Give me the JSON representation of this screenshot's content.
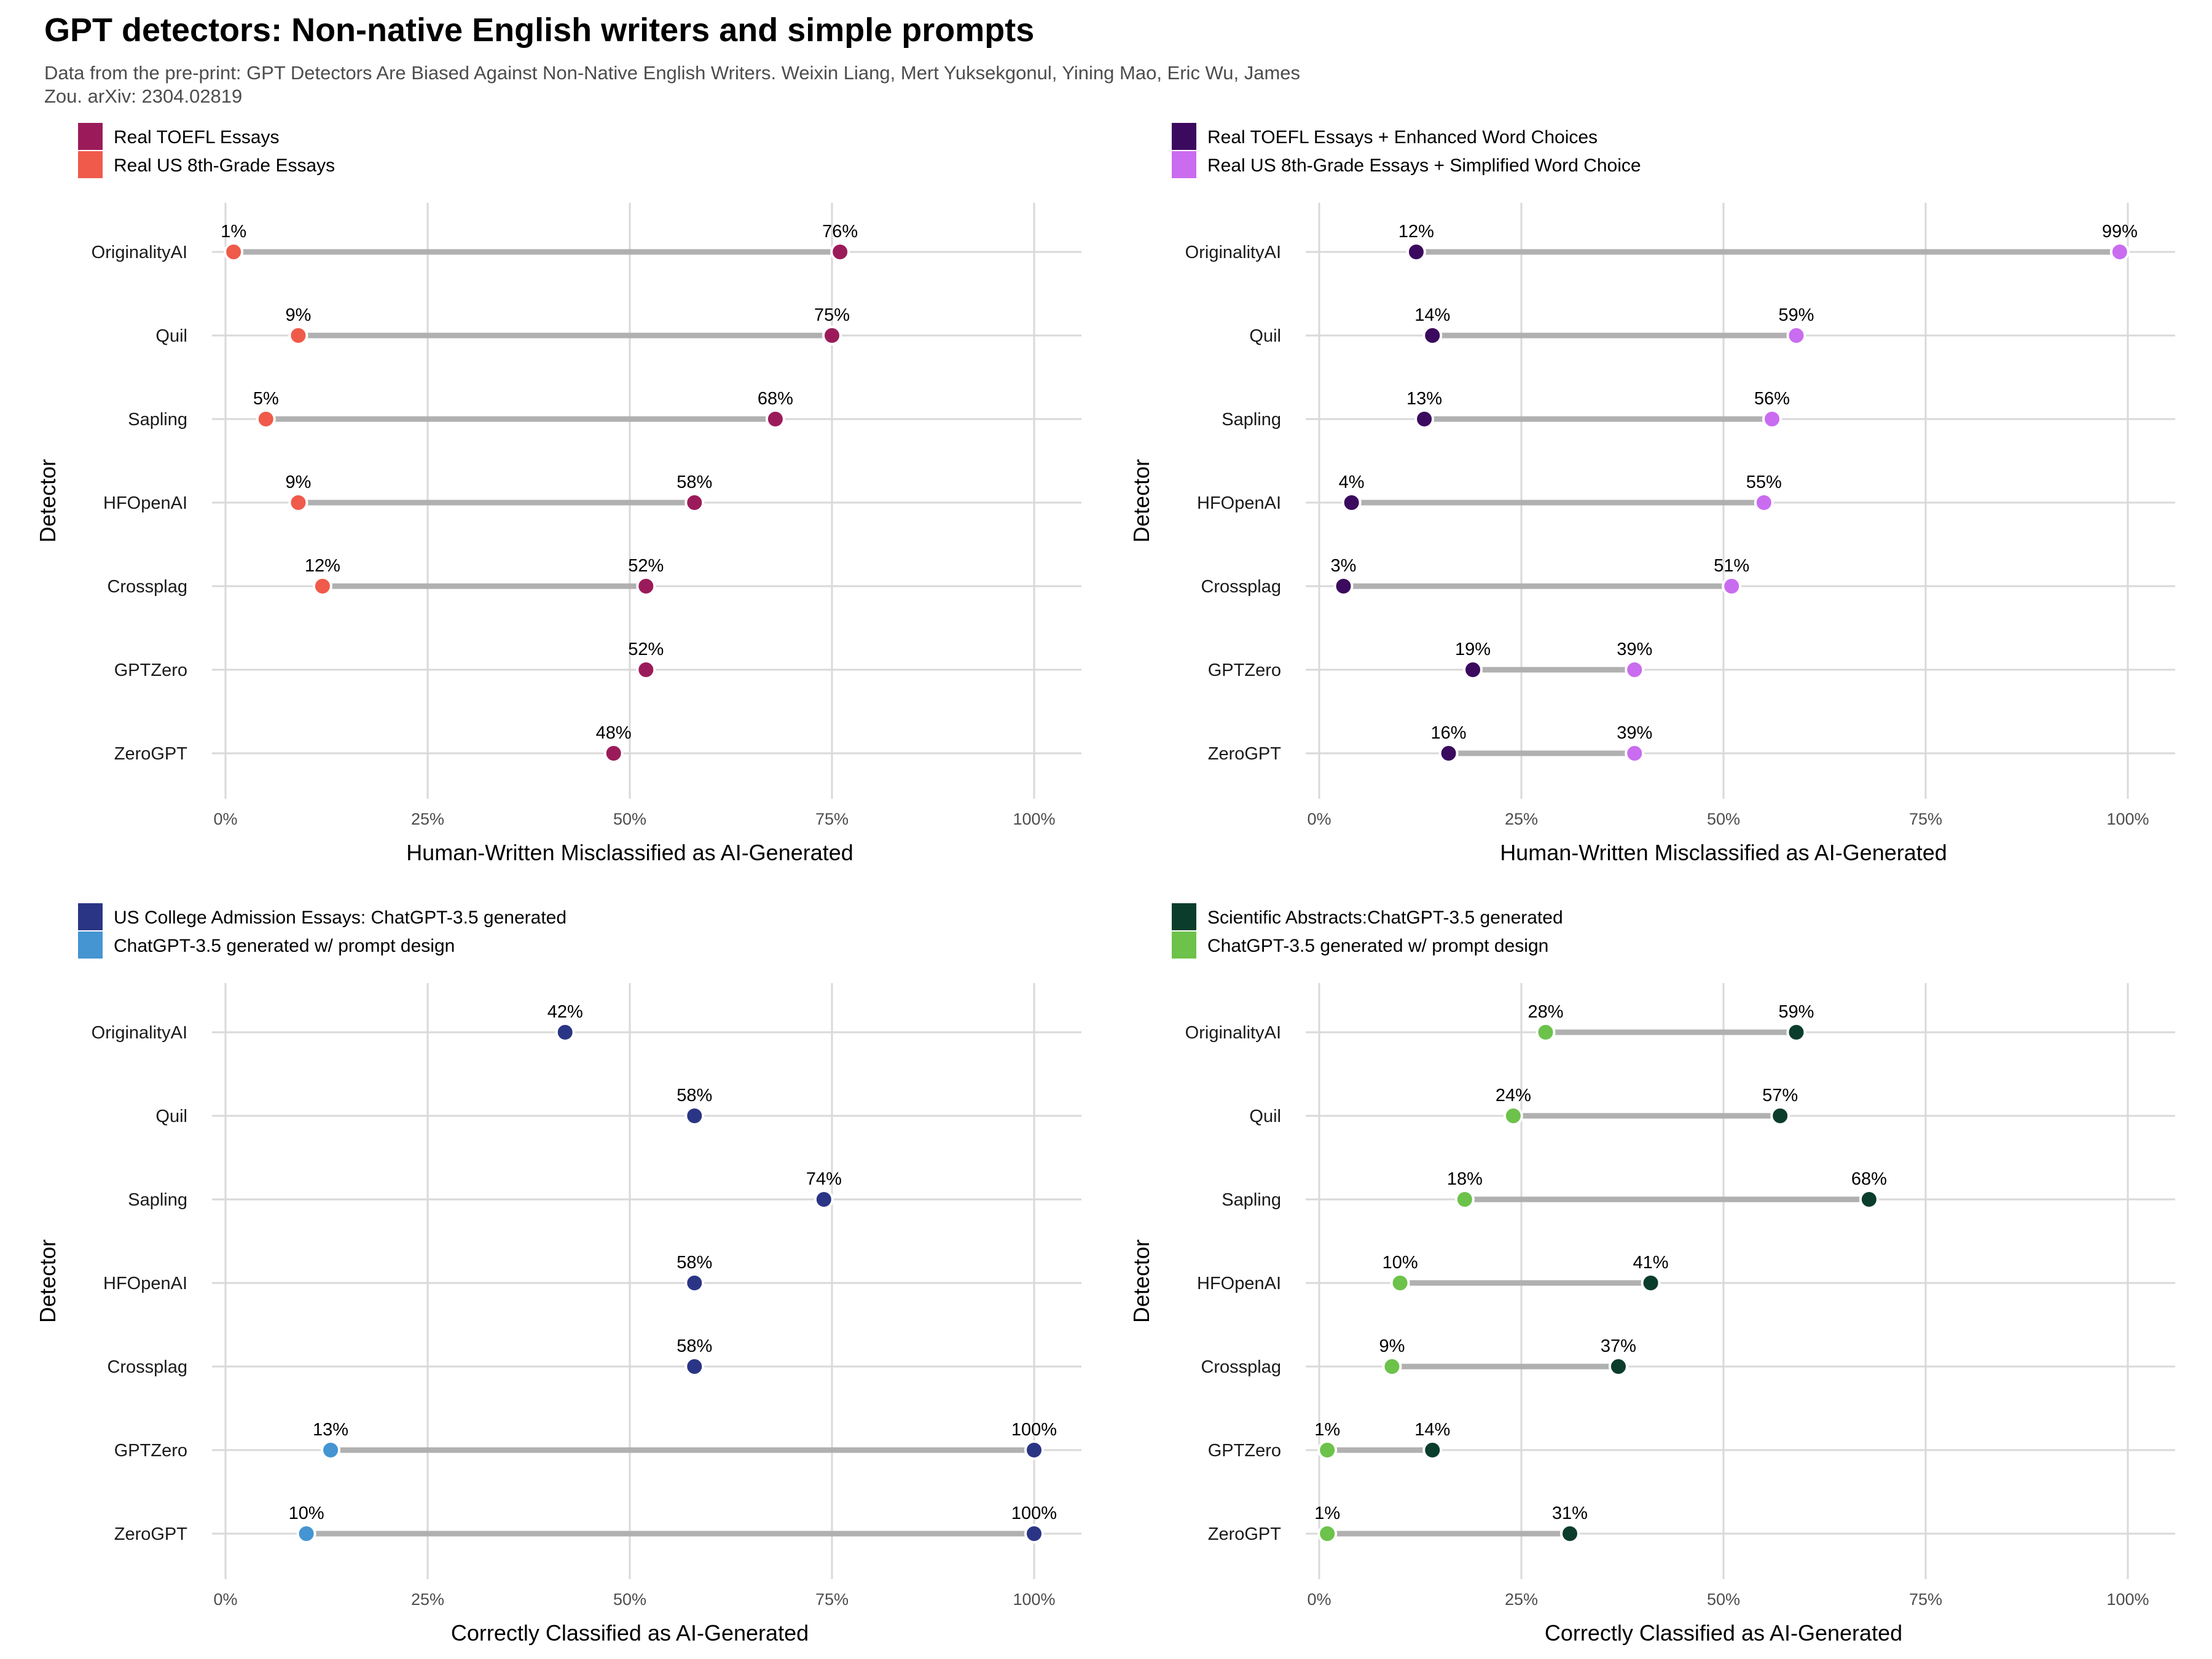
{
  "title": "GPT detectors: Non-native English writers and simple prompts",
  "subtitle": "Data from the pre-print: GPT Detectors Are Biased Against Non-Native English Writers. Weixin Liang, Mert Yuksekgonul, Yining Mao, Eric Wu, James Zou. arXiv: 2304.02819",
  "chart_data": [
    {
      "type": "dumbbell",
      "xlabel": "Human-Written Misclassified as AI-Generated",
      "ylabel": "Detector",
      "xlim": [
        0,
        100
      ],
      "xticks": [
        "0%",
        "25%",
        "50%",
        "75%",
        "100%"
      ],
      "categories": [
        "OriginalityAI",
        "Quil",
        "Sapling",
        "HFOpenAI",
        "Crossplag",
        "GPTZero",
        "ZeroGPT"
      ],
      "legend_position": "top-left",
      "series": [
        {
          "name": "Real TOEFL Essays",
          "color": "#9B1B5A",
          "values": [
            76,
            75,
            68,
            58,
            52,
            52,
            48
          ],
          "labels": [
            "76%",
            "75%",
            "68%",
            "58%",
            "52%",
            "52%",
            "48%"
          ]
        },
        {
          "name": "Real US 8th-Grade Essays",
          "color": "#F05A4A",
          "values": [
            1,
            9,
            5,
            9,
            12,
            null,
            null
          ],
          "labels": [
            "1%",
            "9%",
            "5%",
            "9%",
            "12%",
            "",
            ""
          ]
        }
      ]
    },
    {
      "type": "dumbbell",
      "xlabel": "Human-Written Misclassified as AI-Generated",
      "ylabel": "Detector",
      "xlim": [
        0,
        100
      ],
      "xticks": [
        "0%",
        "25%",
        "50%",
        "75%",
        "100%"
      ],
      "categories": [
        "OriginalityAI",
        "Quil",
        "Sapling",
        "HFOpenAI",
        "Crossplag",
        "GPTZero",
        "ZeroGPT"
      ],
      "legend_position": "top-left",
      "series": [
        {
          "name": "Real TOEFL Essays + Enhanced Word Choices",
          "color": "#3B0A5E",
          "values": [
            12,
            14,
            13,
            4,
            3,
            19,
            16
          ],
          "labels": [
            "12%",
            "14%",
            "13%",
            "4%",
            "3%",
            "19%",
            "16%"
          ]
        },
        {
          "name": "Real US 8th-Grade Essays + Simplified Word Choice",
          "color": "#C96CF0",
          "values": [
            99,
            59,
            56,
            55,
            51,
            39,
            39
          ],
          "labels": [
            "99%",
            "59%",
            "56%",
            "55%",
            "51%",
            "39%",
            "39%"
          ]
        }
      ]
    },
    {
      "type": "dumbbell",
      "xlabel": "Correctly Classified as AI-Generated",
      "ylabel": "Detector",
      "xlim": [
        0,
        100
      ],
      "xticks": [
        "0%",
        "25%",
        "50%",
        "75%",
        "100%"
      ],
      "categories": [
        "OriginalityAI",
        "Quil",
        "Sapling",
        "HFOpenAI",
        "Crossplag",
        "GPTZero",
        "ZeroGPT"
      ],
      "legend_position": "top-left",
      "series": [
        {
          "name": "US College Admission Essays: ChatGPT-3.5 generated",
          "color": "#2A3585",
          "values": [
            42,
            58,
            74,
            58,
            58,
            100,
            100
          ],
          "labels": [
            "42%",
            "58%",
            "74%",
            "58%",
            "58%",
            "100%",
            "100%"
          ]
        },
        {
          "name": "ChatGPT-3.5 generated w/ prompt design",
          "color": "#4495D1",
          "values": [
            null,
            null,
            null,
            null,
            null,
            13,
            10
          ],
          "labels": [
            "",
            "",
            "",
            "",
            "",
            "13%",
            "10%"
          ]
        }
      ]
    },
    {
      "type": "dumbbell",
      "xlabel": "Correctly Classified as AI-Generated",
      "ylabel": "Detector",
      "xlim": [
        0,
        100
      ],
      "xticks": [
        "0%",
        "25%",
        "50%",
        "75%",
        "100%"
      ],
      "categories": [
        "OriginalityAI",
        "Quil",
        "Sapling",
        "HFOpenAI",
        "Crossplag",
        "GPTZero",
        "ZeroGPT"
      ],
      "legend_position": "top-left",
      "series": [
        {
          "name": "Scientific Abstracts:ChatGPT-3.5 generated",
          "color": "#0B3D2C",
          "values": [
            59,
            57,
            68,
            41,
            37,
            14,
            31
          ],
          "labels": [
            "59%",
            "57%",
            "68%",
            "41%",
            "37%",
            "14%",
            "31%"
          ]
        },
        {
          "name": "ChatGPT-3.5 generated w/ prompt design",
          "color": "#6CC24A",
          "values": [
            28,
            24,
            18,
            10,
            9,
            1,
            1
          ],
          "labels": [
            "28%",
            "24%",
            "18%",
            "10%",
            "9%",
            "1%",
            "1%"
          ]
        }
      ]
    }
  ]
}
